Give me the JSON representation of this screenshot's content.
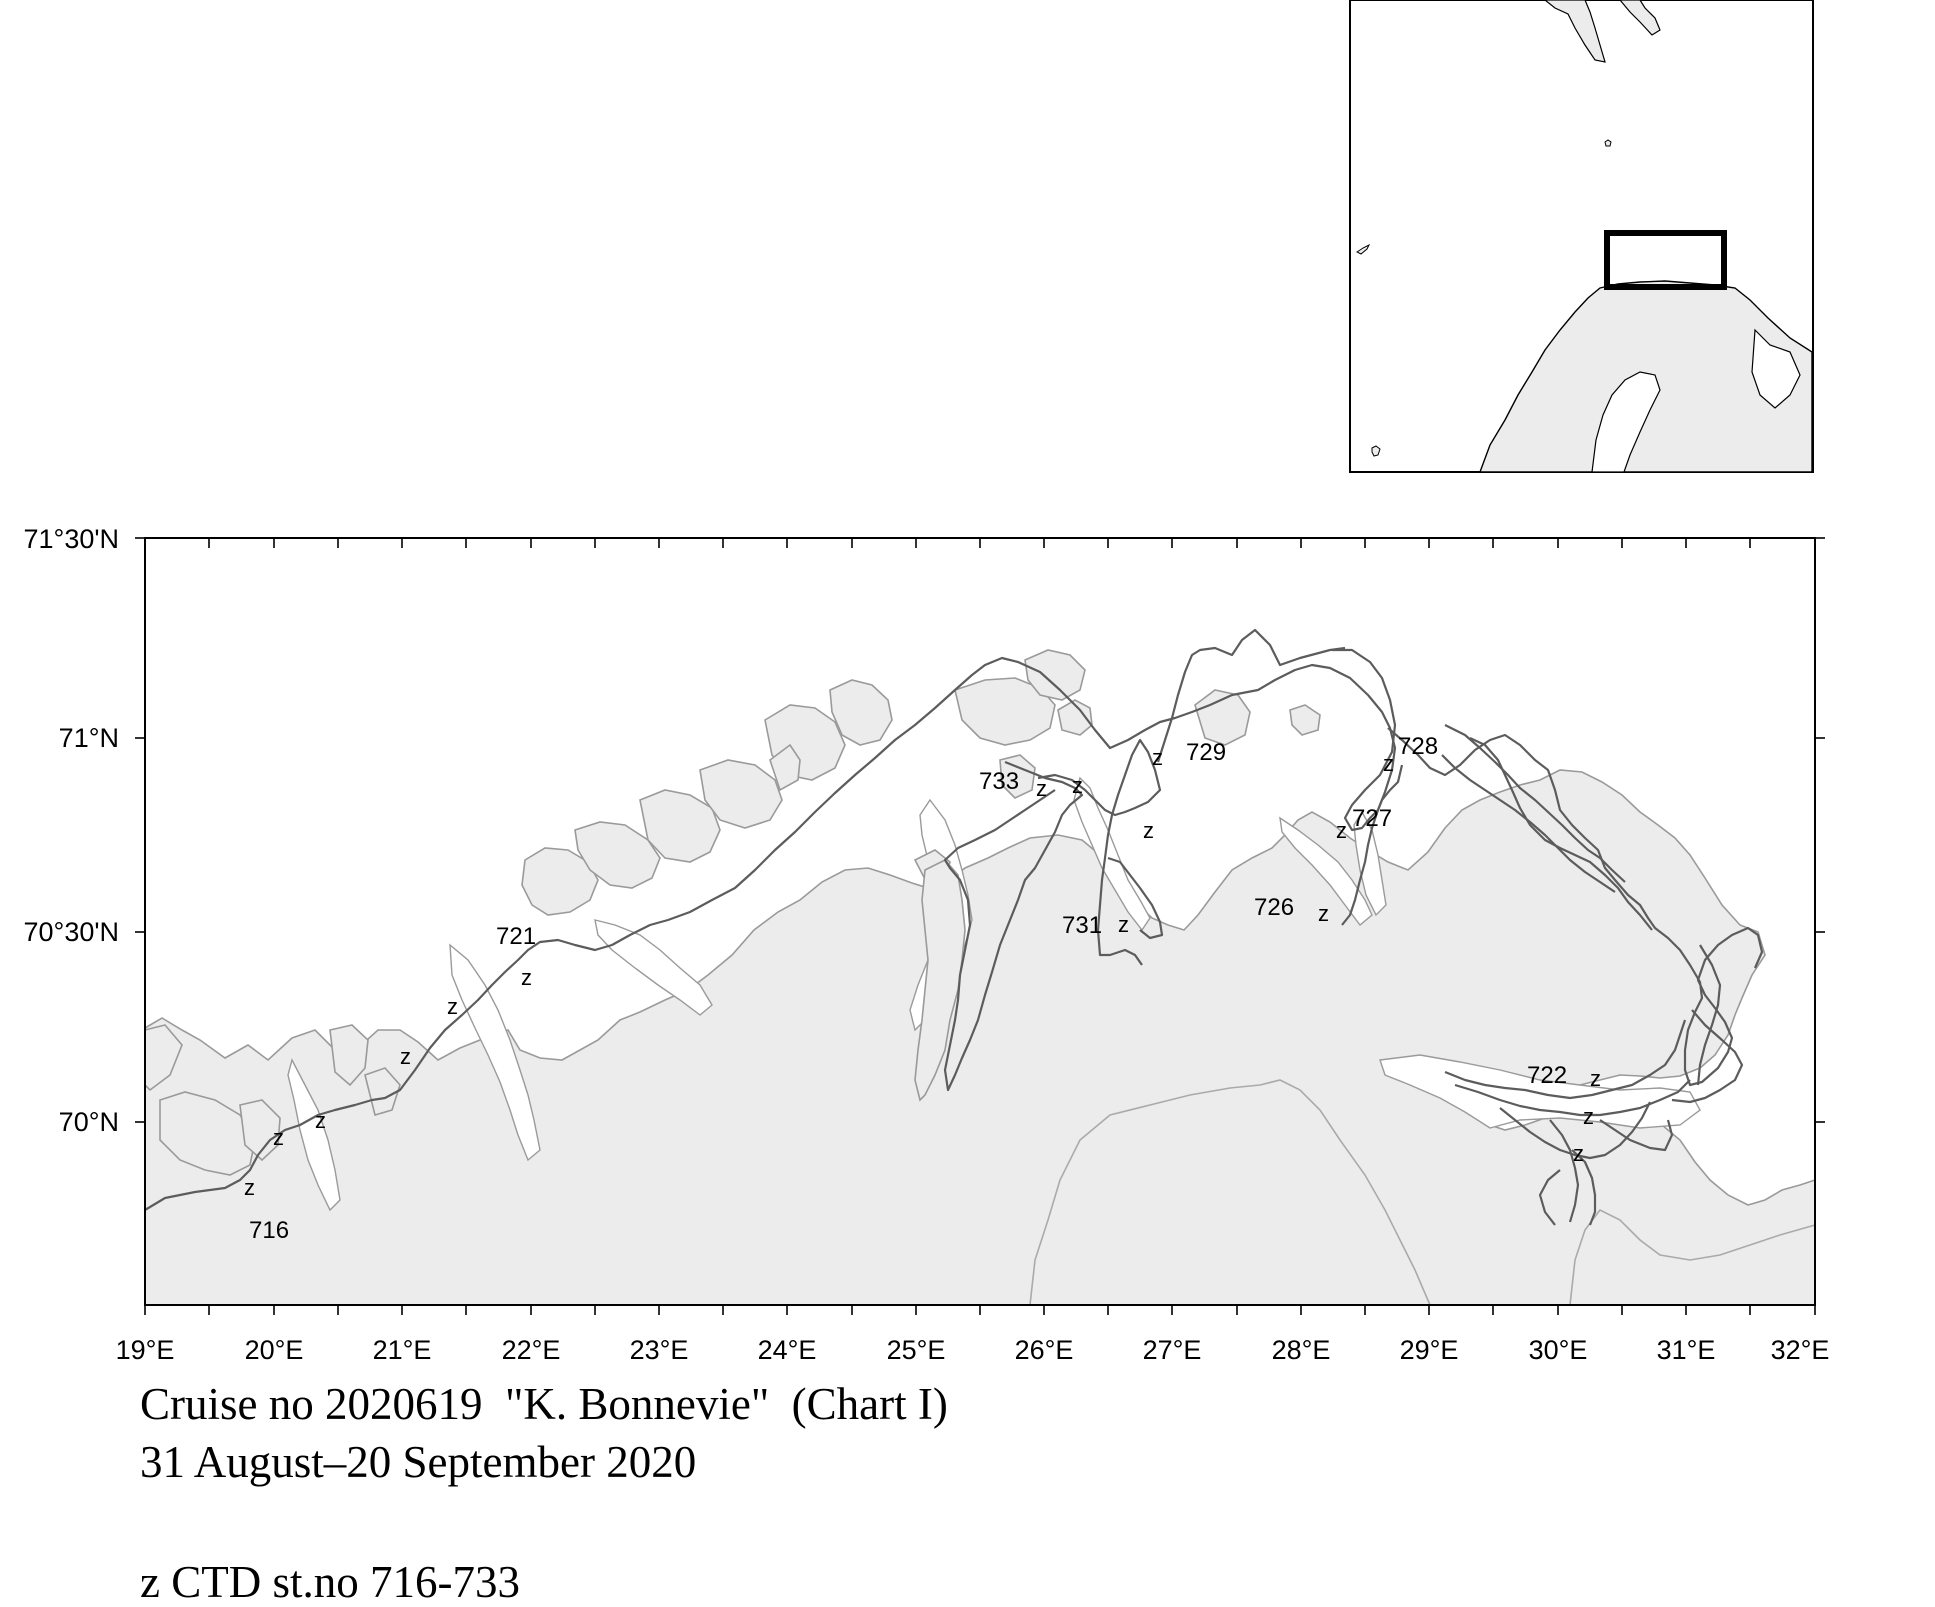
{
  "map": {
    "lat_labels": [
      "71°30'N",
      "71°N",
      "70°30'N",
      "70°N"
    ],
    "lon_labels": [
      "19°E",
      "20°E",
      "21°E",
      "22°E",
      "23°E",
      "24°E",
      "25°E",
      "26°E",
      "27°E",
      "28°E",
      "29°E",
      "30°E",
      "31°E",
      "32°E"
    ],
    "stations": [
      {
        "number": "716",
        "marker": "z"
      },
      {
        "number": "721",
        "marker": "z"
      },
      {
        "number": "722",
        "marker": "z"
      },
      {
        "number": "726",
        "marker": "z"
      },
      {
        "number": "727",
        "marker": "z"
      },
      {
        "number": "728",
        "marker": "z"
      },
      {
        "number": "729",
        "marker": "z"
      },
      {
        "number": "731",
        "marker": "z"
      },
      {
        "number": "733",
        "marker": "z"
      }
    ],
    "colors": {
      "land": "#ececec",
      "coast": "#9a9a9a",
      "track": "#5c5c5c",
      "frame": "#000000"
    }
  },
  "caption": {
    "title": "Cruise no 2020619  \"K. Bonnevie\"  (Chart I)",
    "dates": "31 August–20 September 2020",
    "legend": "z CTD st.no 716-733"
  }
}
